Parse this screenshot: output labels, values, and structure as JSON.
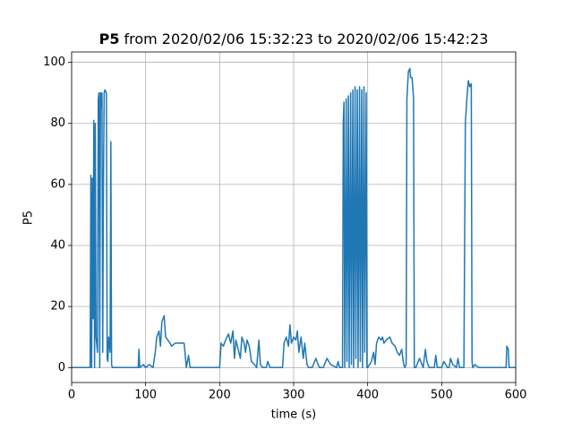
{
  "chart_data": {
    "type": "line",
    "title_bold": "P5",
    "title": "from 2020/02/06 15:32:23 to 2020/02/06 15:42:23",
    "xlabel": "time (s)",
    "ylabel": "P5",
    "xlim": [
      0,
      600
    ],
    "xticks": [
      0,
      100,
      200,
      300,
      400,
      500,
      600
    ],
    "ylim": [
      -4.9,
      103.4
    ],
    "yticks": [
      0,
      20,
      40,
      60,
      80,
      100
    ],
    "grid": true,
    "x": [
      0,
      25,
      26,
      27,
      28,
      29,
      30,
      31,
      32,
      33,
      35,
      36,
      37,
      38,
      39,
      40,
      41,
      42,
      43,
      44,
      45,
      47,
      48,
      49,
      50,
      52,
      53,
      54,
      55,
      90,
      91,
      92,
      97,
      100,
      105,
      110,
      113,
      115,
      118,
      120,
      122,
      125,
      127,
      130,
      133,
      135,
      140,
      145,
      152,
      155,
      158,
      160,
      200,
      202,
      205,
      208,
      212,
      215,
      218,
      220,
      222,
      225,
      228,
      230,
      233,
      235,
      237,
      240,
      243,
      247,
      250,
      253,
      255,
      258,
      263,
      265,
      268,
      285,
      287,
      290,
      293,
      295,
      297,
      300,
      303,
      305,
      307,
      310,
      313,
      315,
      318,
      320,
      325,
      330,
      333,
      335,
      340,
      345,
      350,
      358,
      360,
      362,
      366,
      367,
      368,
      369,
      371,
      372,
      374,
      375,
      377,
      378,
      380,
      381,
      383,
      384,
      386,
      387,
      389,
      390,
      392,
      393,
      395,
      396,
      398,
      399,
      400,
      405,
      408,
      410,
      412,
      415,
      418,
      420,
      422,
      425,
      430,
      433,
      437,
      440,
      443,
      446,
      448,
      450,
      452,
      453,
      455,
      457,
      458,
      460,
      462,
      463,
      465,
      470,
      475,
      478,
      480,
      483,
      490,
      492,
      494,
      500,
      503,
      508,
      510,
      512,
      515,
      520,
      522,
      524,
      530,
      532,
      534,
      536,
      538,
      540,
      541,
      542,
      545,
      550,
      587,
      588,
      590,
      591,
      600
    ],
    "series": [
      {
        "color": "#1f77b4",
        "values": [
          0,
          0,
          63,
          0,
          62,
          16,
          81,
          0,
          80,
          10,
          5,
          88,
          90,
          0,
          90,
          85,
          90,
          5,
          60,
          90,
          91,
          90,
          3,
          2,
          10,
          5,
          74,
          1,
          0,
          0,
          6,
          0,
          1,
          0,
          1,
          0,
          5,
          10,
          12,
          7,
          15,
          17,
          10,
          9,
          8,
          7,
          8,
          8,
          8,
          0,
          4,
          0,
          0,
          8,
          7,
          9,
          11,
          8,
          12,
          3,
          9,
          6,
          3,
          10,
          8,
          5,
          9,
          7,
          2,
          1,
          0,
          9,
          1,
          0,
          0,
          2,
          0,
          0,
          8,
          10,
          7,
          14,
          8,
          10,
          9,
          12,
          5,
          10,
          3,
          8,
          1,
          0,
          0,
          3,
          1,
          0,
          0,
          3,
          1,
          0,
          2,
          0,
          0,
          80,
          87,
          0,
          88,
          2,
          89,
          0,
          90,
          1,
          91,
          0,
          92,
          3,
          91,
          0,
          92,
          2,
          91,
          0,
          92,
          5,
          90,
          0,
          0,
          2,
          5,
          1,
          8,
          10,
          9,
          10,
          8,
          9,
          10,
          8,
          7,
          5,
          4,
          6,
          2,
          0,
          1,
          88,
          97,
          98,
          95,
          95,
          88,
          0,
          0,
          3,
          0,
          6,
          2,
          0,
          0,
          4,
          0,
          0,
          2,
          0,
          0,
          3,
          1,
          0,
          3,
          0,
          0,
          80,
          88,
          94,
          92,
          93,
          2,
          0,
          1,
          0,
          0,
          7,
          6,
          0,
          0
        ]
      }
    ]
  }
}
